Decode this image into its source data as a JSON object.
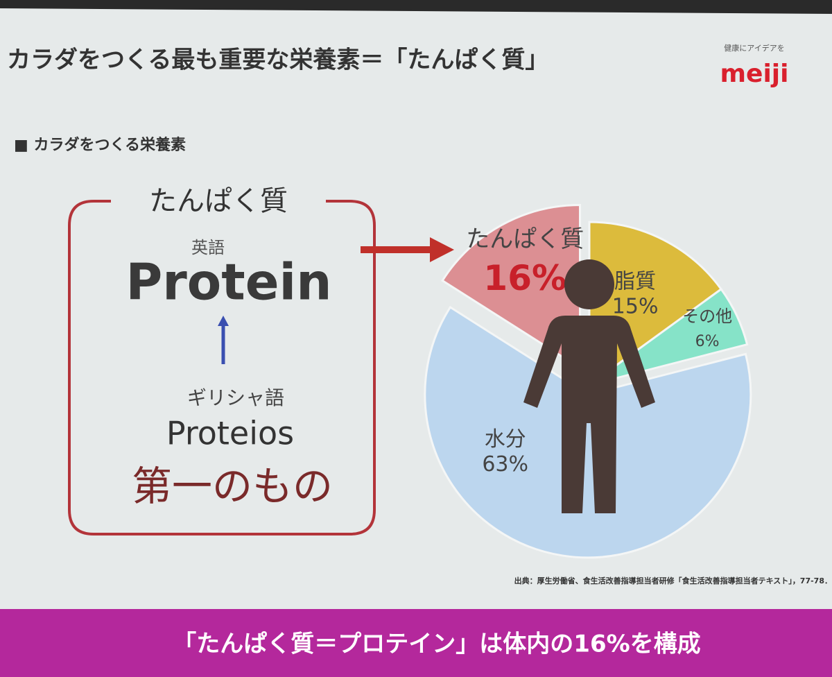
{
  "slide": {
    "title": "カラダをつくる最も重要な栄養素＝「たんぱく質」",
    "logo_tagline": "健康にアイデアを",
    "logo": "meiji",
    "section": "■ カラダをつくる栄養素",
    "source": "出典：厚生労働省、食生活改善指導担当者研修「食生活改善指導担当者テキスト」，77-78．",
    "banner": "「たんぱく質＝プロテイン」は体内の16%を構成"
  },
  "box": {
    "title": "たんぱく質",
    "english_label": "英語",
    "english": "Protein",
    "greek_label": "ギリシャ語",
    "greek": "Proteios",
    "meaning": "第一のもの"
  },
  "chart_data": {
    "type": "pie",
    "categories": [
      "たんぱく質",
      "脂質",
      "その他",
      "水分"
    ],
    "values": [
      16,
      15,
      6,
      63
    ],
    "value_labels": [
      "16%",
      "15%",
      "6%",
      "63%"
    ],
    "colors": [
      "#dc8f93",
      "#dcbb3c",
      "#86e3c8",
      "#bcd6ee"
    ]
  }
}
